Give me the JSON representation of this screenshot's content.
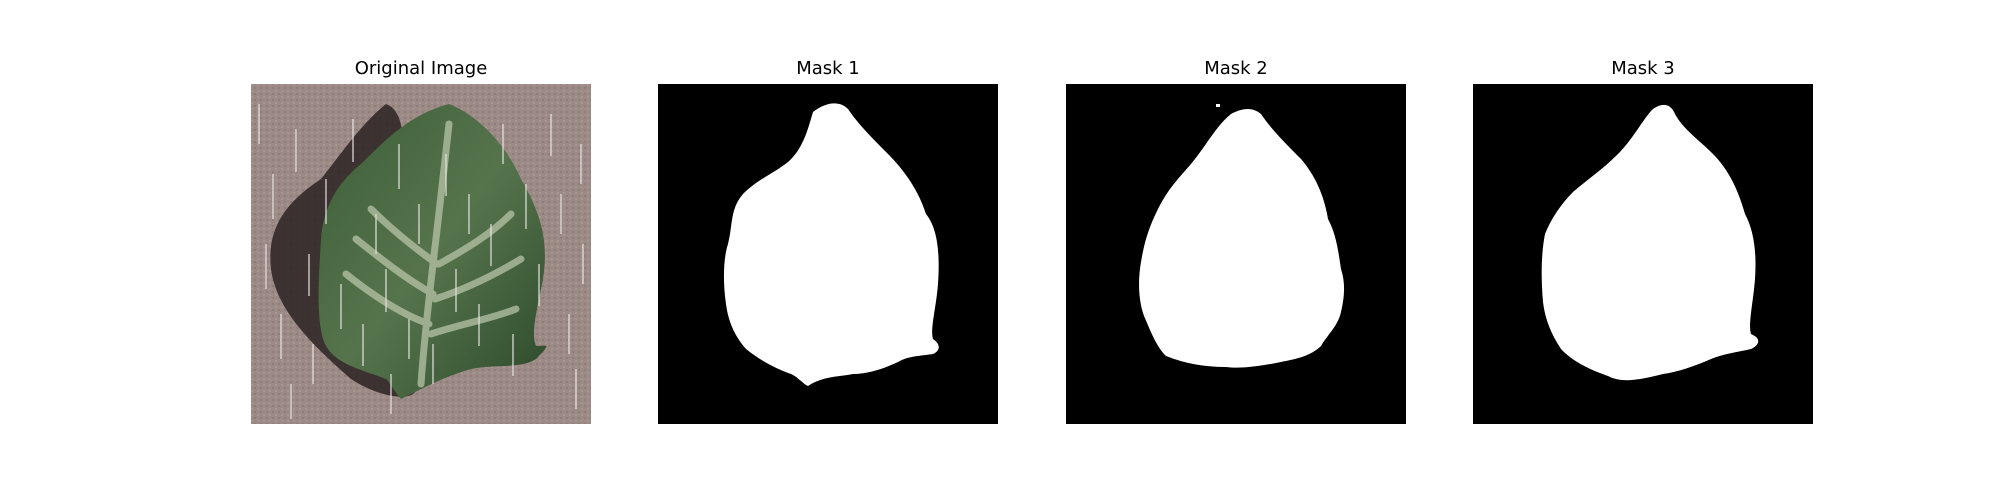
{
  "figure": {
    "panels": [
      {
        "title": "Original Image",
        "kind": "photo"
      },
      {
        "title": "Mask 1",
        "kind": "mask"
      },
      {
        "title": "Mask 2",
        "kind": "mask"
      },
      {
        "title": "Mask 3",
        "kind": "mask"
      }
    ],
    "colors": {
      "background": "#ffffff",
      "mask_background": "#000000",
      "mask_foreground": "#ffffff",
      "photo_background": "#9c8a86",
      "leaf_dark": "#2e4a2c",
      "leaf_mid": "#4f6f45",
      "leaf_light": "#a9b79a",
      "shadow": "#2b2222"
    }
  }
}
